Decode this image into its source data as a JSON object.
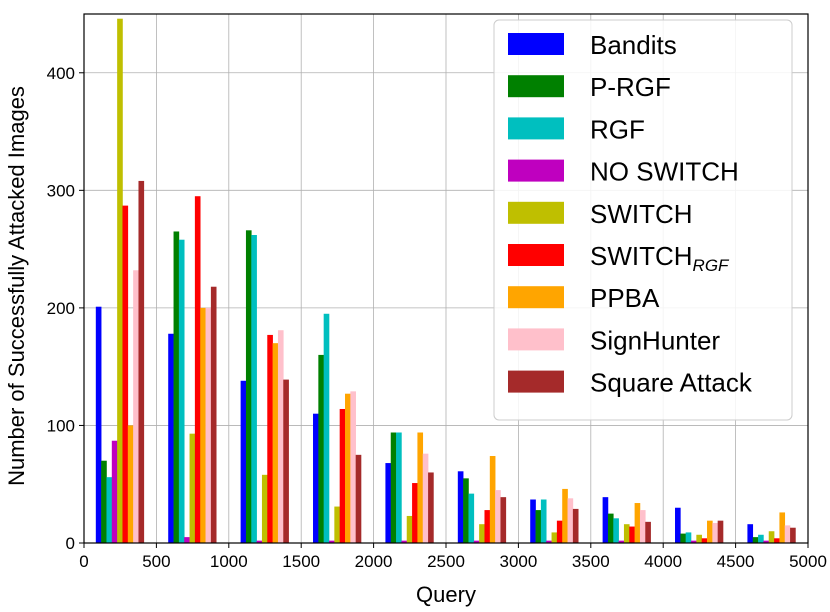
{
  "chart_data": {
    "type": "bar",
    "xlabel": "Query",
    "ylabel": "Number of Successfully Attacked Images",
    "xlim": [
      0,
      5000
    ],
    "ylim": [
      0,
      450
    ],
    "xticks": [
      0,
      500,
      1000,
      1500,
      2000,
      2500,
      3000,
      3500,
      4000,
      4500,
      5000
    ],
    "yticks": [
      0,
      100,
      200,
      300,
      400
    ],
    "grid": true,
    "legend_position": "top-right",
    "categories": [
      100,
      600,
      1100,
      1600,
      2100,
      2600,
      3100,
      3600,
      4100,
      4600
    ],
    "series": [
      {
        "name": "Bandits",
        "sub": "",
        "color": "#0000ff",
        "values": [
          201,
          178,
          138,
          110,
          68,
          61,
          37,
          39,
          30,
          16
        ]
      },
      {
        "name": "P-RGF",
        "sub": "",
        "color": "#008000",
        "values": [
          70,
          265,
          266,
          160,
          94,
          55,
          28,
          25,
          8,
          5
        ]
      },
      {
        "name": "RGF",
        "sub": "",
        "color": "#00bfbf",
        "values": [
          56,
          258,
          262,
          195,
          94,
          42,
          37,
          21,
          9,
          7
        ]
      },
      {
        "name": "NO SWITCH",
        "sub": "",
        "color": "#bf00bf",
        "values": [
          87,
          5,
          2,
          2,
          2,
          2,
          2,
          2,
          2,
          2
        ]
      },
      {
        "name": "SWITCH",
        "sub": "",
        "color": "#bfbf00",
        "values": [
          446,
          93,
          58,
          31,
          23,
          16,
          9,
          16,
          7,
          10
        ]
      },
      {
        "name": "SWITCH",
        "sub": "RGF",
        "color": "#ff0000",
        "values": [
          287,
          295,
          177,
          114,
          51,
          28,
          19,
          14,
          4,
          4
        ]
      },
      {
        "name": "PPBA",
        "sub": "",
        "color": "#ffa500",
        "values": [
          100,
          200,
          170,
          127,
          94,
          74,
          46,
          34,
          19,
          26
        ]
      },
      {
        "name": "SignHunter",
        "sub": "",
        "color": "#ffc0cb",
        "values": [
          232,
          200,
          181,
          129,
          76,
          45,
          38,
          28,
          17,
          15
        ]
      },
      {
        "name": "Square Attack",
        "sub": "",
        "color": "#a52a2a",
        "values": [
          308,
          218,
          139,
          75,
          60,
          39,
          29,
          18,
          19,
          13
        ]
      }
    ]
  }
}
